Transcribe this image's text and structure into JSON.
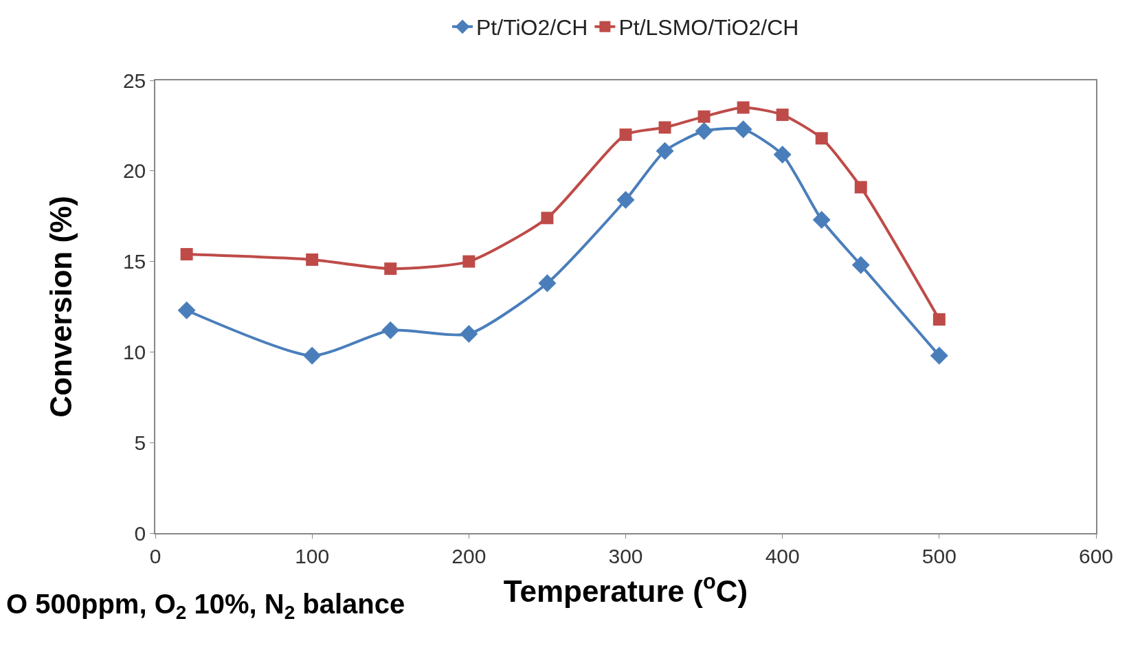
{
  "chart_data": {
    "type": "line",
    "xlabel": "Temperature ($^{o}$C)",
    "ylabel": "Conversion (%)",
    "x": [
      20,
      100,
      150,
      200,
      250,
      300,
      325,
      350,
      375,
      400,
      425,
      450,
      500
    ],
    "series": [
      {
        "name": "Pt/TiO2/CH",
        "color": "#4a7ebb",
        "marker": "diamond",
        "values": [
          12.3,
          9.8,
          11.2,
          11.0,
          13.8,
          18.4,
          21.1,
          22.2,
          22.3,
          20.9,
          17.3,
          14.8,
          9.8
        ]
      },
      {
        "name": "Pt/LSMO/TiO2/CH",
        "color": "#be4b48",
        "marker": "square",
        "values": [
          15.4,
          15.1,
          14.6,
          15.0,
          17.4,
          22.0,
          22.4,
          23.0,
          23.5,
          23.1,
          21.8,
          19.1,
          11.8
        ]
      }
    ],
    "xlim": [
      0,
      600
    ],
    "xticks": [
      0,
      100,
      200,
      300,
      400,
      500,
      600
    ],
    "ylim": [
      0,
      25
    ],
    "yticks": [
      0,
      5,
      10,
      15,
      20,
      25
    ],
    "legend": "top",
    "line_style": "solid",
    "annotations": [
      "O 500ppm, O$_{2}$ 10%, N$_{2}$ balance"
    ]
  }
}
